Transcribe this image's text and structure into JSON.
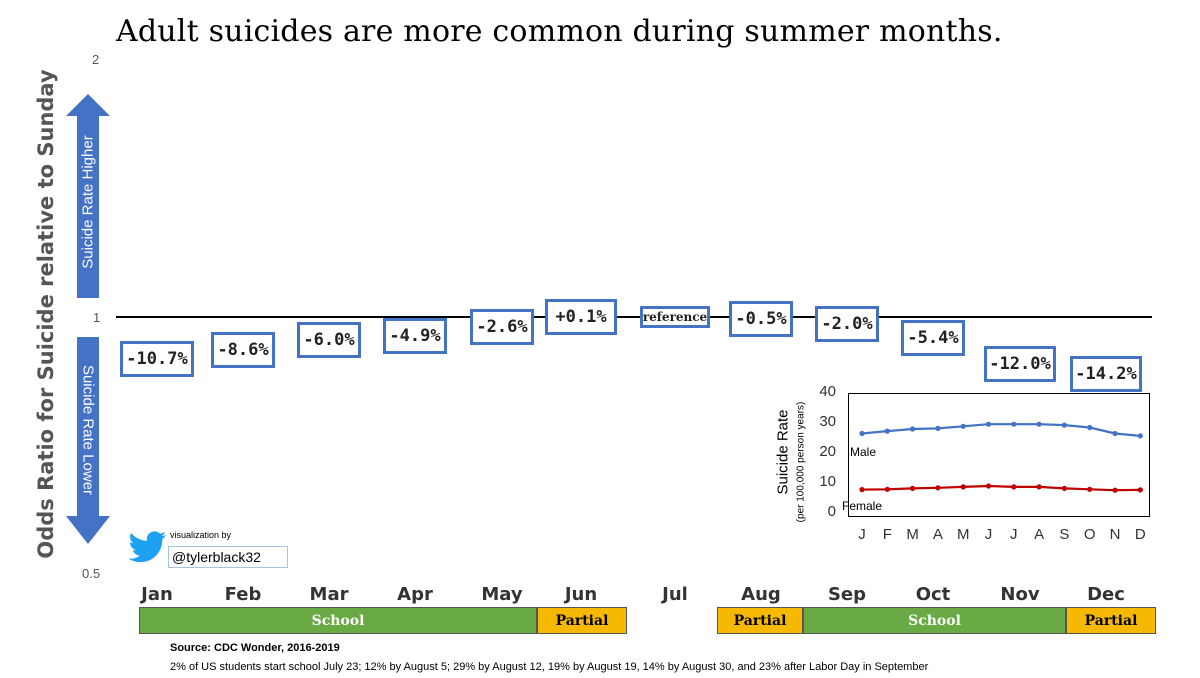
{
  "title": "Adult suicides are more common during summer months.",
  "colors": {
    "box_border": "#4472c4",
    "arrow": "#4472c4",
    "school": "#6aaa45",
    "partial": "#f6b800",
    "male": "#4472c4",
    "female": "#c00000"
  },
  "arrows": {
    "up_label": "Suicide Rate Higher",
    "down_label": "Suicide Rate Lower"
  },
  "chart_data": [
    {
      "type": "bar",
      "title": "Adult suicides are more common during summer months.",
      "ylabel": "Odds Ratio for Suicide relative to Sunday",
      "yticks": [
        "2",
        "1",
        "0.5"
      ],
      "ylim": [
        0.5,
        2
      ],
      "yscale": "log",
      "categories": [
        "Jan",
        "Feb",
        "Mar",
        "Apr",
        "May",
        "Jun",
        "Jul",
        "Aug",
        "Sep",
        "Oct",
        "Nov",
        "Dec"
      ],
      "values": [
        0.893,
        0.914,
        0.94,
        0.951,
        0.974,
        1.001,
        1.0,
        0.995,
        0.98,
        0.946,
        0.88,
        0.858
      ],
      "labels": [
        "-10.7%",
        "-8.6%",
        "-6.0%",
        "-4.9%",
        "-2.6%",
        "+0.1%",
        "reference",
        "-0.5%",
        "-2.0%",
        "-5.4%",
        "-12.0%",
        "-14.2%"
      ]
    },
    {
      "type": "line",
      "ylabel": "Suicide Rate",
      "ylabel_sub": "(per 100,000 person years)",
      "x": [
        "J",
        "F",
        "M",
        "A",
        "M",
        "J",
        "J",
        "A",
        "S",
        "O",
        "N",
        "D"
      ],
      "ylim": [
        0,
        40
      ],
      "yticks": [
        "40",
        "30",
        "20",
        "10",
        "0"
      ],
      "series": [
        {
          "name": "Male",
          "color": "#4472c4",
          "values": [
            26.5,
            27.3,
            28.0,
            28.2,
            28.9,
            29.6,
            29.6,
            29.6,
            29.3,
            28.5,
            26.5,
            25.7
          ]
        },
        {
          "name": "Female",
          "color": "#c00000",
          "values": [
            7.8,
            7.9,
            8.2,
            8.4,
            8.7,
            9.0,
            8.7,
            8.7,
            8.2,
            7.9,
            7.6,
            7.7
          ]
        }
      ]
    }
  ],
  "school_bars": [
    {
      "label": "School",
      "kind": "school"
    },
    {
      "label": "Partial",
      "kind": "partial"
    },
    {
      "label": "Partial",
      "kind": "partial"
    },
    {
      "label": "School",
      "kind": "school"
    },
    {
      "label": "Partial",
      "kind": "partial"
    }
  ],
  "credit": {
    "prefix": "visualization by",
    "handle": "@tylerblack32",
    "icon": "twitter-bird-icon"
  },
  "source": "Source: CDC Wonder, 2016-2019",
  "note": "2% of US students start school July 23; 12% by August 5; 29% by August 12, 19% by August 19, 14% by August 30, and 23% after Labor Day in September"
}
